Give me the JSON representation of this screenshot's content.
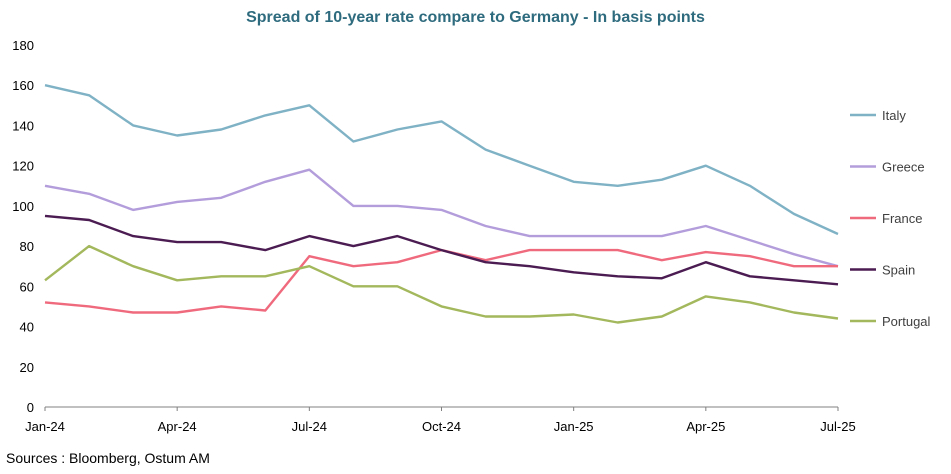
{
  "chart_data": {
    "type": "line",
    "title": "Spread of 10-year rate compare to Germany - In basis points",
    "xlabel": "",
    "ylabel": "",
    "ylim": [
      0,
      180
    ],
    "y_ticks": [
      "0",
      "20",
      "40",
      "60",
      "80",
      "100",
      "120",
      "140",
      "160",
      "180"
    ],
    "x_tick_labels": [
      "Jan-24",
      "Apr-24",
      "Jul-24",
      "Oct-24",
      "Jan-25",
      "Apr-25",
      "Jul-25"
    ],
    "x": [
      "Jan-24",
      "Feb-24",
      "Mar-24",
      "Apr-24",
      "May-24",
      "Jun-24",
      "Jul-24",
      "Aug-24",
      "Sep-24",
      "Oct-24",
      "Nov-24",
      "Dec-24",
      "Jan-25",
      "Feb-25",
      "Mar-25",
      "Apr-25",
      "May-25",
      "Jun-25",
      "Jul-25"
    ],
    "legend_position": "right",
    "grid": "horizontal",
    "series": [
      {
        "name": "Italy",
        "color": "#7FB2C5",
        "values": [
          160,
          155,
          140,
          135,
          138,
          145,
          150,
          132,
          138,
          142,
          128,
          120,
          112,
          110,
          113,
          120,
          110,
          96,
          86
        ]
      },
      {
        "name": "Greece",
        "color": "#B39DDB",
        "values": [
          110,
          106,
          98,
          102,
          104,
          112,
          118,
          100,
          100,
          98,
          90,
          85,
          85,
          85,
          85,
          90,
          83,
          76,
          70
        ]
      },
      {
        "name": "France",
        "color": "#F06A7E",
        "values": [
          52,
          50,
          47,
          47,
          50,
          48,
          75,
          70,
          72,
          78,
          73,
          78,
          78,
          78,
          73,
          77,
          75,
          70,
          70
        ]
      },
      {
        "name": "Spain",
        "color": "#4B1C52",
        "values": [
          95,
          93,
          85,
          82,
          82,
          78,
          85,
          80,
          85,
          78,
          72,
          70,
          67,
          65,
          64,
          72,
          65,
          63,
          61
        ]
      },
      {
        "name": "Portugal",
        "color": "#A3B85C",
        "values": [
          63,
          80,
          70,
          63,
          65,
          65,
          70,
          60,
          60,
          50,
          45,
          45,
          46,
          42,
          45,
          55,
          52,
          47,
          44
        ]
      }
    ]
  },
  "source": "Sources : Bloomberg, Ostum AM"
}
